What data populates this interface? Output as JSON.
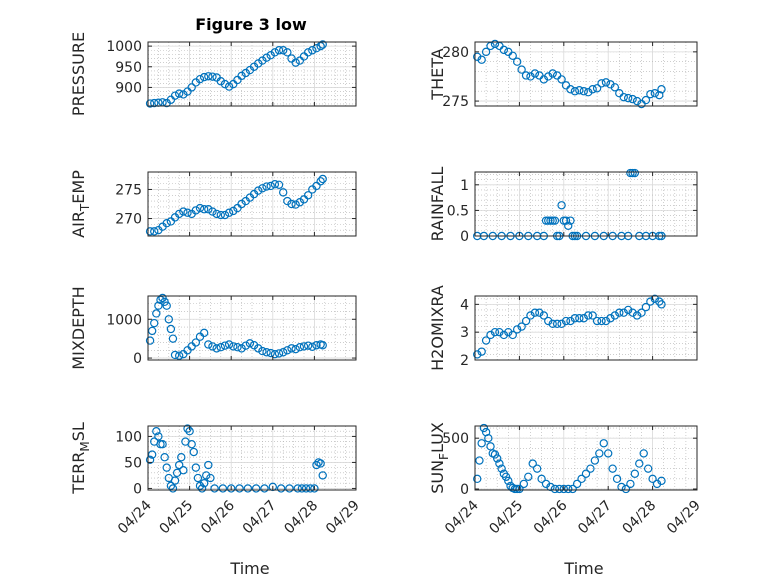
{
  "figure": {
    "title": "Figure 3 low"
  },
  "colors": {
    "marker": "#0072BD",
    "axis": "#262626"
  },
  "chart_data": [
    {
      "id": "pressure",
      "type": "scatter",
      "title": "Figure 3 low",
      "ylabel": "PRESSURE",
      "xlabel": "",
      "xlim": [
        0,
        5
      ],
      "ylim": [
        855,
        1010
      ],
      "yticks": [
        900,
        950,
        1000
      ],
      "x": [
        0.05,
        0.15,
        0.25,
        0.35,
        0.45,
        0.55,
        0.65,
        0.75,
        0.85,
        0.95,
        1.05,
        1.15,
        1.25,
        1.35,
        1.45,
        1.55,
        1.65,
        1.75,
        1.85,
        1.95,
        2.05,
        2.15,
        2.25,
        2.35,
        2.45,
        2.55,
        2.65,
        2.75,
        2.85,
        2.95,
        3.05,
        3.15,
        3.25,
        3.35,
        3.45,
        3.55,
        3.65,
        3.75,
        3.85,
        3.95,
        4.05,
        4.15,
        4.2
      ],
      "y": [
        861,
        862,
        863,
        864,
        862,
        870,
        880,
        885,
        883,
        890,
        900,
        912,
        920,
        925,
        927,
        926,
        924,
        915,
        908,
        902,
        908,
        918,
        928,
        935,
        942,
        950,
        958,
        965,
        972,
        978,
        985,
        990,
        990,
        985,
        970,
        960,
        965,
        975,
        985,
        990,
        995,
        1000,
        1004
      ]
    },
    {
      "id": "theta",
      "type": "scatter",
      "ylabel": "THETA",
      "xlabel": "",
      "xlim": [
        0,
        5
      ],
      "ylim": [
        274.5,
        281
      ],
      "yticks": [
        275,
        280
      ],
      "x": [
        0.05,
        0.15,
        0.25,
        0.35,
        0.45,
        0.55,
        0.65,
        0.75,
        0.85,
        0.95,
        1.05,
        1.15,
        1.25,
        1.35,
        1.45,
        1.55,
        1.65,
        1.75,
        1.85,
        1.95,
        2.05,
        2.15,
        2.25,
        2.35,
        2.45,
        2.55,
        2.65,
        2.75,
        2.85,
        2.95,
        3.05,
        3.15,
        3.25,
        3.35,
        3.45,
        3.55,
        3.65,
        3.75,
        3.85,
        3.95,
        4.05,
        4.15,
        4.2
      ],
      "y": [
        279.5,
        279.2,
        280.0,
        280.6,
        280.8,
        280.6,
        280.2,
        280.0,
        279.6,
        279.0,
        278.2,
        277.6,
        277.5,
        277.8,
        277.6,
        277.2,
        277.5,
        277.8,
        277.6,
        277.2,
        276.6,
        276.2,
        276.0,
        276.1,
        276.0,
        275.9,
        276.2,
        276.3,
        276.8,
        276.9,
        276.7,
        276.4,
        275.8,
        275.4,
        275.3,
        275.2,
        275.0,
        274.7,
        275.1,
        275.7,
        275.8,
        275.6,
        276.2
      ]
    },
    {
      "id": "air_temp",
      "type": "scatter",
      "ylabel": "AIR_TEMP",
      "xlabel": "",
      "xlim": [
        0,
        5
      ],
      "ylim": [
        267,
        278
      ],
      "yticks": [
        270,
        275
      ],
      "x": [
        0.05,
        0.15,
        0.25,
        0.35,
        0.45,
        0.55,
        0.65,
        0.75,
        0.85,
        0.95,
        1.05,
        1.15,
        1.25,
        1.35,
        1.45,
        1.55,
        1.65,
        1.75,
        1.85,
        1.95,
        2.05,
        2.15,
        2.25,
        2.35,
        2.45,
        2.55,
        2.65,
        2.75,
        2.85,
        2.95,
        3.05,
        3.15,
        3.25,
        3.35,
        3.45,
        3.55,
        3.65,
        3.75,
        3.85,
        3.95,
        4.05,
        4.15,
        4.2
      ],
      "y": [
        267.8,
        267.8,
        268.0,
        268.6,
        269.2,
        269.5,
        270.2,
        270.8,
        271.2,
        271.0,
        270.8,
        271.4,
        271.8,
        271.6,
        271.6,
        271.2,
        270.8,
        270.6,
        270.6,
        271.0,
        271.3,
        271.8,
        272.5,
        273.0,
        273.6,
        274.2,
        274.8,
        275.2,
        275.5,
        275.6,
        275.9,
        275.8,
        274.5,
        273.0,
        272.5,
        272.4,
        272.8,
        273.3,
        274.0,
        275.0,
        275.6,
        276.4,
        276.8
      ]
    },
    {
      "id": "rainfall",
      "type": "scatter",
      "ylabel": "RAINFALL",
      "xlabel": "",
      "xlim": [
        0,
        5
      ],
      "ylim": [
        0,
        1.25
      ],
      "yticks": [
        0,
        0.5,
        1
      ],
      "x": [
        0.05,
        0.2,
        0.4,
        0.6,
        0.8,
        1.0,
        1.2,
        1.4,
        1.55,
        1.6,
        1.65,
        1.7,
        1.75,
        1.8,
        1.85,
        1.9,
        1.95,
        2.0,
        2.05,
        2.1,
        2.15,
        2.2,
        2.25,
        2.3,
        2.5,
        2.7,
        2.9,
        3.1,
        3.3,
        3.45,
        3.5,
        3.55,
        3.6,
        3.7,
        3.85,
        4.0,
        4.15,
        4.2
      ],
      "y": [
        0,
        0,
        0,
        0,
        0,
        0,
        0,
        0,
        0,
        0.3,
        0.3,
        0.3,
        0.3,
        0.3,
        0,
        0,
        0.6,
        0.3,
        0.3,
        0.2,
        0.3,
        0,
        0,
        0,
        0,
        0,
        0,
        0,
        0,
        0,
        1.23,
        1.23,
        1.23,
        0,
        0,
        0,
        0,
        0
      ]
    },
    {
      "id": "mixdepth",
      "type": "scatter",
      "ylabel": "MIXDEPTH",
      "xlabel": "",
      "xlim": [
        0,
        5
      ],
      "ylim": [
        -50,
        1600
      ],
      "yticks": [
        0,
        1000
      ],
      "x": [
        0.05,
        0.1,
        0.15,
        0.2,
        0.25,
        0.3,
        0.35,
        0.4,
        0.45,
        0.5,
        0.55,
        0.6,
        0.65,
        0.75,
        0.85,
        0.95,
        1.05,
        1.15,
        1.25,
        1.35,
        1.45,
        1.55,
        1.65,
        1.75,
        1.85,
        1.95,
        2.05,
        2.15,
        2.25,
        2.35,
        2.45,
        2.55,
        2.65,
        2.75,
        2.85,
        2.95,
        3.05,
        3.15,
        3.25,
        3.35,
        3.45,
        3.55,
        3.65,
        3.75,
        3.85,
        3.95,
        4.05,
        4.15,
        4.2
      ],
      "y": [
        450,
        700,
        900,
        1150,
        1350,
        1500,
        1550,
        1450,
        1350,
        1000,
        750,
        500,
        80,
        60,
        100,
        200,
        300,
        400,
        550,
        650,
        350,
        300,
        250,
        280,
        320,
        350,
        300,
        280,
        250,
        320,
        380,
        330,
        250,
        180,
        150,
        130,
        100,
        120,
        150,
        200,
        250,
        230,
        280,
        300,
        320,
        290,
        330,
        350,
        330
      ]
    },
    {
      "id": "h2omixra",
      "type": "scatter",
      "ylabel": "H2OMIXRA",
      "xlabel": "",
      "xlim": [
        0,
        5
      ],
      "ylim": [
        2,
        4.3
      ],
      "yticks": [
        2,
        3,
        4
      ],
      "x": [
        0.05,
        0.15,
        0.25,
        0.35,
        0.45,
        0.55,
        0.65,
        0.75,
        0.85,
        0.95,
        1.05,
        1.15,
        1.25,
        1.35,
        1.45,
        1.55,
        1.65,
        1.75,
        1.85,
        1.95,
        2.05,
        2.15,
        2.25,
        2.35,
        2.45,
        2.55,
        2.65,
        2.75,
        2.85,
        2.95,
        3.05,
        3.15,
        3.25,
        3.35,
        3.45,
        3.55,
        3.65,
        3.75,
        3.85,
        3.95,
        4.05,
        4.15,
        4.2
      ],
      "y": [
        2.2,
        2.3,
        2.7,
        2.9,
        3.0,
        3.0,
        2.9,
        3.0,
        2.9,
        3.1,
        3.2,
        3.4,
        3.6,
        3.7,
        3.7,
        3.6,
        3.4,
        3.3,
        3.3,
        3.3,
        3.4,
        3.4,
        3.5,
        3.5,
        3.5,
        3.6,
        3.6,
        3.4,
        3.4,
        3.4,
        3.5,
        3.6,
        3.7,
        3.7,
        3.8,
        3.7,
        3.6,
        3.7,
        3.9,
        4.1,
        4.2,
        4.1,
        4.0
      ]
    },
    {
      "id": "terr_msl",
      "type": "scatter",
      "ylabel": "TERR_MSL",
      "xlabel": "Time",
      "xlim": [
        0,
        5
      ],
      "ylim": [
        -3,
        120
      ],
      "yticks": [
        0,
        50,
        100
      ],
      "xticklabels": [
        "04/24",
        "04/25",
        "04/26",
        "04/27",
        "04/28",
        "04/29"
      ],
      "x": [
        0.05,
        0.1,
        0.15,
        0.2,
        0.25,
        0.3,
        0.35,
        0.4,
        0.45,
        0.5,
        0.55,
        0.6,
        0.65,
        0.7,
        0.75,
        0.8,
        0.85,
        0.9,
        0.95,
        1.0,
        1.05,
        1.1,
        1.15,
        1.2,
        1.25,
        1.3,
        1.35,
        1.4,
        1.45,
        1.5,
        1.6,
        1.8,
        2.0,
        2.2,
        2.4,
        2.6,
        2.8,
        3.0,
        3.2,
        3.4,
        3.6,
        3.7,
        3.8,
        3.9,
        4.0,
        4.05,
        4.1,
        4.15,
        4.2
      ],
      "y": [
        55,
        65,
        90,
        110,
        100,
        85,
        85,
        60,
        40,
        20,
        5,
        0,
        15,
        30,
        45,
        60,
        35,
        90,
        115,
        110,
        85,
        70,
        40,
        20,
        5,
        0,
        10,
        25,
        45,
        20,
        0,
        0,
        0,
        0,
        0,
        0,
        0,
        3,
        0,
        0,
        0,
        0,
        0,
        0,
        0,
        45,
        50,
        48,
        25
      ]
    },
    {
      "id": "sun_flux",
      "type": "scatter",
      "ylabel": "SUN_FLUX",
      "xlabel": "Time",
      "xlim": [
        0,
        5
      ],
      "ylim": [
        -10,
        620
      ],
      "yticks": [
        0,
        500
      ],
      "xticklabels": [
        "04/24",
        "04/25",
        "04/26",
        "04/27",
        "04/28",
        "04/29"
      ],
      "x": [
        0.05,
        0.1,
        0.15,
        0.2,
        0.25,
        0.3,
        0.35,
        0.4,
        0.45,
        0.5,
        0.55,
        0.6,
        0.65,
        0.7,
        0.75,
        0.8,
        0.85,
        0.9,
        0.95,
        1.0,
        1.1,
        1.2,
        1.3,
        1.4,
        1.5,
        1.6,
        1.7,
        1.8,
        1.9,
        2.0,
        2.1,
        2.2,
        2.3,
        2.4,
        2.5,
        2.6,
        2.7,
        2.8,
        2.9,
        3.0,
        3.1,
        3.2,
        3.3,
        3.4,
        3.5,
        3.6,
        3.7,
        3.8,
        3.9,
        4.0,
        4.1,
        4.2
      ],
      "y": [
        100,
        280,
        450,
        600,
        560,
        500,
        420,
        350,
        340,
        300,
        250,
        200,
        150,
        120,
        80,
        30,
        10,
        0,
        0,
        0,
        50,
        120,
        250,
        200,
        100,
        50,
        20,
        0,
        0,
        0,
        0,
        0,
        50,
        100,
        150,
        200,
        280,
        350,
        450,
        350,
        200,
        100,
        20,
        0,
        50,
        150,
        250,
        350,
        200,
        100,
        50,
        80
      ]
    }
  ]
}
